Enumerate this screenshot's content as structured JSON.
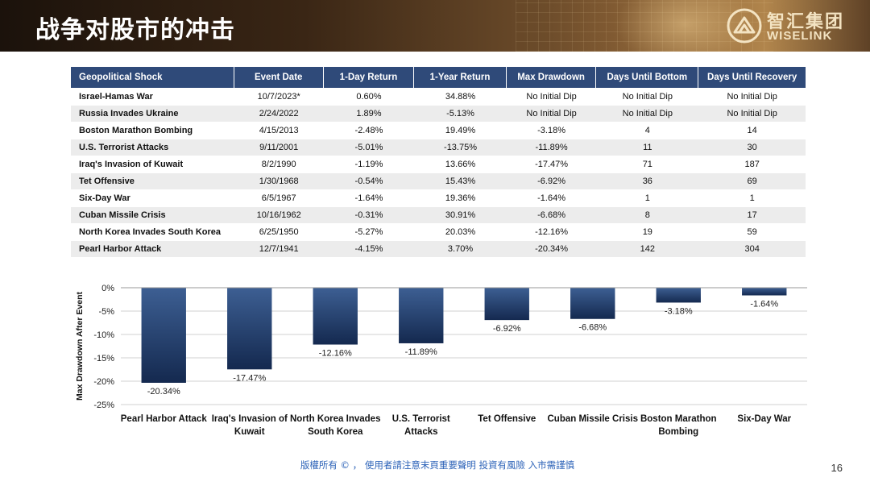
{
  "header": {
    "title": "战争对股市的冲击",
    "logo_cn": "智汇集团",
    "logo_en": "WISELINK"
  },
  "table": {
    "columns": [
      "Geopolitical Shock",
      "Event Date",
      "1-Day Return",
      "1-Year Return",
      "Max Drawdown",
      "Days Until Bottom",
      "Days Until Recovery"
    ],
    "rows": [
      [
        "Israel-Hamas War",
        "10/7/2023*",
        "0.60%",
        "34.88%",
        "No Initial Dip",
        "No Initial Dip",
        "No Initial Dip"
      ],
      [
        "Russia Invades Ukraine",
        "2/24/2022",
        "1.89%",
        "-5.13%",
        "No Initial Dip",
        "No Initial Dip",
        "No Initial Dip"
      ],
      [
        "Boston Marathon Bombing",
        "4/15/2013",
        "-2.48%",
        "19.49%",
        "-3.18%",
        "4",
        "14"
      ],
      [
        "U.S. Terrorist Attacks",
        "9/11/2001",
        "-5.01%",
        "-13.75%",
        "-11.89%",
        "11",
        "30"
      ],
      [
        "Iraq's Invasion of Kuwait",
        "8/2/1990",
        "-1.19%",
        "13.66%",
        "-17.47%",
        "71",
        "187"
      ],
      [
        "Tet Offensive",
        "1/30/1968",
        "-0.54%",
        "15.43%",
        "-6.92%",
        "36",
        "69"
      ],
      [
        "Six-Day War",
        "6/5/1967",
        "-1.64%",
        "19.36%",
        "-1.64%",
        "1",
        "1"
      ],
      [
        "Cuban Missile Crisis",
        "10/16/1962",
        "-0.31%",
        "30.91%",
        "-6.68%",
        "8",
        "17"
      ],
      [
        "North Korea Invades South Korea",
        "6/25/1950",
        "-5.27%",
        "20.03%",
        "-12.16%",
        "19",
        "59"
      ],
      [
        "Pearl Harbor Attack",
        "12/7/1941",
        "-4.15%",
        "3.70%",
        "-20.34%",
        "142",
        "304"
      ]
    ]
  },
  "chart_data": {
    "type": "bar",
    "title": "",
    "xlabel": "",
    "ylabel": "Max Drawdown After Event",
    "categories": [
      [
        "Pearl Harbor Attack"
      ],
      [
        "Iraq's Invasion of",
        "Kuwait"
      ],
      [
        "North Korea Invades",
        "South Korea"
      ],
      [
        "U.S. Terrorist",
        "Attacks"
      ],
      [
        "Tet Offensive"
      ],
      [
        "Cuban Missile Crisis"
      ],
      [
        "Boston Marathon",
        "Bombing"
      ],
      [
        "Six-Day War"
      ]
    ],
    "values": [
      -20.34,
      -17.47,
      -12.16,
      -11.89,
      -6.92,
      -6.68,
      -3.18,
      -1.64
    ],
    "value_labels": [
      "-20.34%",
      "-17.47%",
      "-12.16%",
      "-11.89%",
      "-6.92%",
      "-6.68%",
      "-3.18%",
      "-1.64%"
    ],
    "yticks": [
      0,
      -5,
      -10,
      -15,
      -20,
      -25
    ],
    "ytick_labels": [
      "0%",
      "-5%",
      "-10%",
      "-15%",
      "-20%",
      "-25%"
    ],
    "ylim": [
      -25,
      0
    ],
    "grid": true,
    "colors": {
      "bar_top": "#3d5f93",
      "bar_bottom": "#14294f",
      "grid": "#d0d0d0"
    }
  },
  "footer": {
    "note": "版權所有 © ， 使用者請注意末頁重要聲明  投資有風險 入市需謹慎",
    "page_number": "16"
  }
}
